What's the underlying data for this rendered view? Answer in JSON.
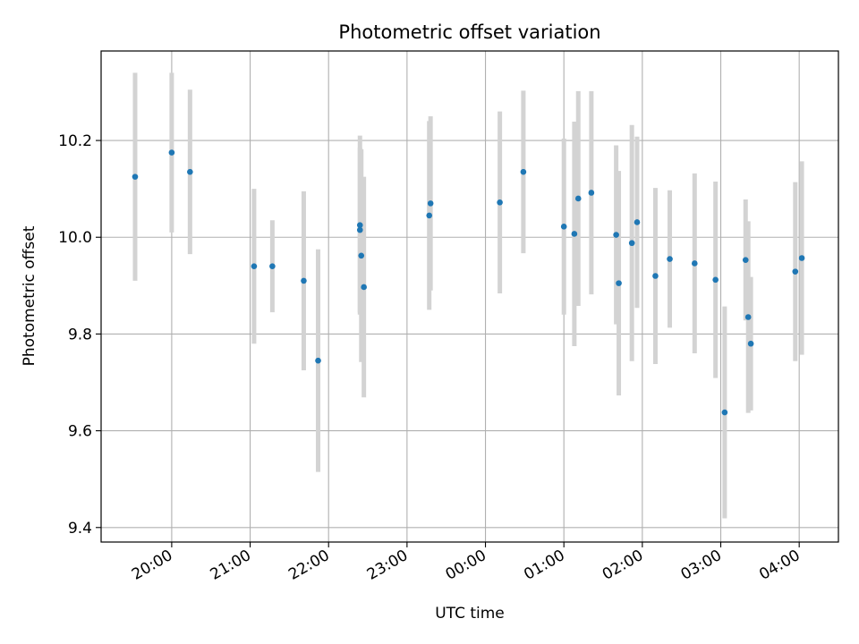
{
  "chart_data": {
    "type": "scatter",
    "title": "Photometric offset variation",
    "xlabel": "UTC time",
    "ylabel": "Photometric offset",
    "x_tick_labels": [
      "20:00",
      "21:00",
      "22:00",
      "23:00",
      "00:00",
      "01:00",
      "02:00",
      "03:00",
      "04:00"
    ],
    "x_tick_times": [
      "19:57",
      "20:57",
      "21:57",
      "22:57",
      "23:57",
      "00:57",
      "01:57",
      "02:57",
      "03:57"
    ],
    "x_range": [
      "19:03",
      "04:27"
    ],
    "y_ticks": [
      9.4,
      9.6,
      9.8,
      10.0,
      10.2
    ],
    "y_tick_labels": [
      "9.4",
      "9.6",
      "9.8",
      "10.0",
      "10.2"
    ],
    "ylim": [
      9.37,
      10.385
    ],
    "grid": true,
    "colors": {
      "point": "#1f77b4",
      "errorbar": "#d3d3d3",
      "grid": "#b0b0b0"
    },
    "points": [
      {
        "t": "19:29",
        "y": 10.125,
        "err": 0.215
      },
      {
        "t": "19:57",
        "y": 10.175,
        "err": 0.165
      },
      {
        "t": "20:11",
        "y": 10.135,
        "err": 0.17
      },
      {
        "t": "21:00",
        "y": 9.94,
        "err": 0.16
      },
      {
        "t": "21:14",
        "y": 9.94,
        "err": 0.095
      },
      {
        "t": "21:38",
        "y": 9.91,
        "err": 0.185
      },
      {
        "t": "21:49",
        "y": 9.745,
        "err": 0.23
      },
      {
        "t": "22:21",
        "y": 10.025,
        "err": 0.185
      },
      {
        "t": "22:21",
        "y": 10.015,
        "err": 0.17
      },
      {
        "t": "22:22",
        "y": 9.962,
        "err": 0.22
      },
      {
        "t": "22:24",
        "y": 9.897,
        "err": 0.228
      },
      {
        "t": "23:14",
        "y": 10.045,
        "err": 0.195
      },
      {
        "t": "23:15",
        "y": 10.07,
        "err": 0.18
      },
      {
        "t": "00:08",
        "y": 10.072,
        "err": 0.188
      },
      {
        "t": "00:26",
        "y": 10.135,
        "err": 0.168
      },
      {
        "t": "00:57",
        "y": 10.022,
        "err": 0.182
      },
      {
        "t": "01:05",
        "y": 10.007,
        "err": 0.232
      },
      {
        "t": "01:08",
        "y": 10.08,
        "err": 0.222
      },
      {
        "t": "01:18",
        "y": 10.092,
        "err": 0.21
      },
      {
        "t": "01:37",
        "y": 10.005,
        "err": 0.185
      },
      {
        "t": "01:39",
        "y": 9.905,
        "err": 0.232
      },
      {
        "t": "01:49",
        "y": 9.988,
        "err": 0.244
      },
      {
        "t": "01:53",
        "y": 10.031,
        "err": 0.177
      },
      {
        "t": "02:07",
        "y": 9.92,
        "err": 0.182
      },
      {
        "t": "02:18",
        "y": 9.955,
        "err": 0.142
      },
      {
        "t": "02:37",
        "y": 9.946,
        "err": 0.186
      },
      {
        "t": "02:53",
        "y": 9.912,
        "err": 0.203
      },
      {
        "t": "03:00",
        "y": 9.638,
        "err": 0.219
      },
      {
        "t": "03:16",
        "y": 9.953,
        "err": 0.125
      },
      {
        "t": "03:18",
        "y": 9.835,
        "err": 0.198
      },
      {
        "t": "03:20",
        "y": 9.78,
        "err": 0.138
      },
      {
        "t": "03:54",
        "y": 9.929,
        "err": 0.185
      },
      {
        "t": "03:59",
        "y": 9.957,
        "err": 0.2
      }
    ]
  }
}
